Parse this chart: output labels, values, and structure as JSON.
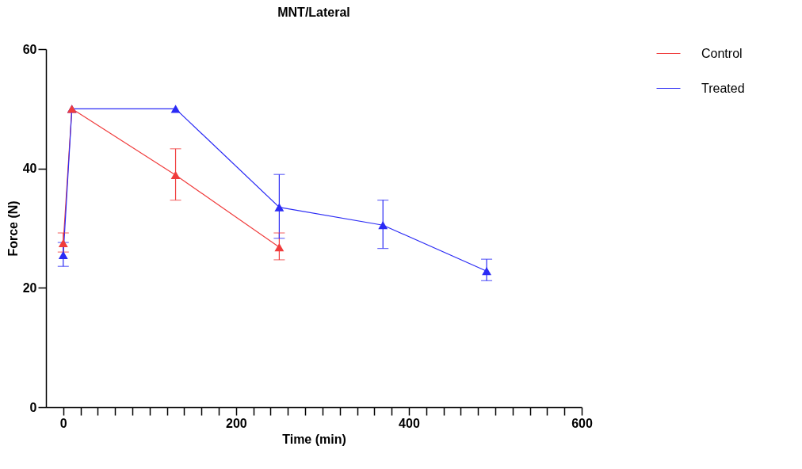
{
  "chart_data": {
    "type": "line",
    "title": "MNT/Lateral",
    "xlabel": "Time (min)",
    "ylabel": "Force (N)",
    "xlim": [
      -20,
      600
    ],
    "xticks": [
      0,
      {
        "value": 20,
        "label": null
      },
      {
        "value": 40,
        "label": null
      },
      {
        "value": 60,
        "label": null
      },
      {
        "value": 80,
        "label": null
      },
      {
        "value": 100,
        "label": null
      },
      {
        "value": 120,
        "label": null
      },
      {
        "value": 140,
        "label": null
      },
      {
        "value": 160,
        "label": null
      },
      {
        "value": 180,
        "label": null
      },
      200,
      {
        "value": 220,
        "label": null
      },
      {
        "value": 240,
        "label": null
      },
      {
        "value": 260,
        "label": null
      },
      {
        "value": 280,
        "label": null
      },
      {
        "value": 300,
        "label": null
      },
      {
        "value": 320,
        "label": null
      },
      {
        "value": 340,
        "label": null
      },
      {
        "value": 360,
        "label": null
      },
      {
        "value": 380,
        "label": null
      },
      400,
      {
        "value": 420,
        "label": null
      },
      {
        "value": 440,
        "label": null
      },
      {
        "value": 460,
        "label": null
      },
      {
        "value": 480,
        "label": null
      },
      {
        "value": 500,
        "label": null
      },
      {
        "value": 520,
        "label": null
      },
      {
        "value": 540,
        "label": null
      },
      {
        "value": 560,
        "label": null
      },
      {
        "value": 580,
        "label": null
      },
      600
    ],
    "ylim": [
      0,
      60
    ],
    "yticks": [
      0,
      20,
      40,
      60
    ],
    "grid": false,
    "legend": "top right",
    "marker": "triangle",
    "line_style": "solid",
    "series": [
      {
        "name": "Control",
        "color": "#f03c3c",
        "x": [
          0,
          10,
          130,
          250
        ],
        "values": [
          27.5,
          50,
          38.9,
          26.8
        ],
        "errors": [
          [
            26.0,
            29.2
          ],
          null,
          [
            34.7,
            43.3
          ],
          [
            24.7,
            29.2
          ]
        ]
      },
      {
        "name": "Treated",
        "color": "#2b2bf5",
        "x": [
          0,
          10,
          130,
          250,
          370,
          490
        ],
        "values": [
          25.5,
          50,
          50,
          33.5,
          30.5,
          22.8
        ],
        "errors": [
          [
            23.6,
            27.6
          ],
          null,
          null,
          [
            28.3,
            39.0
          ],
          [
            26.6,
            34.7
          ],
          [
            21.2,
            24.8
          ]
        ]
      }
    ]
  }
}
